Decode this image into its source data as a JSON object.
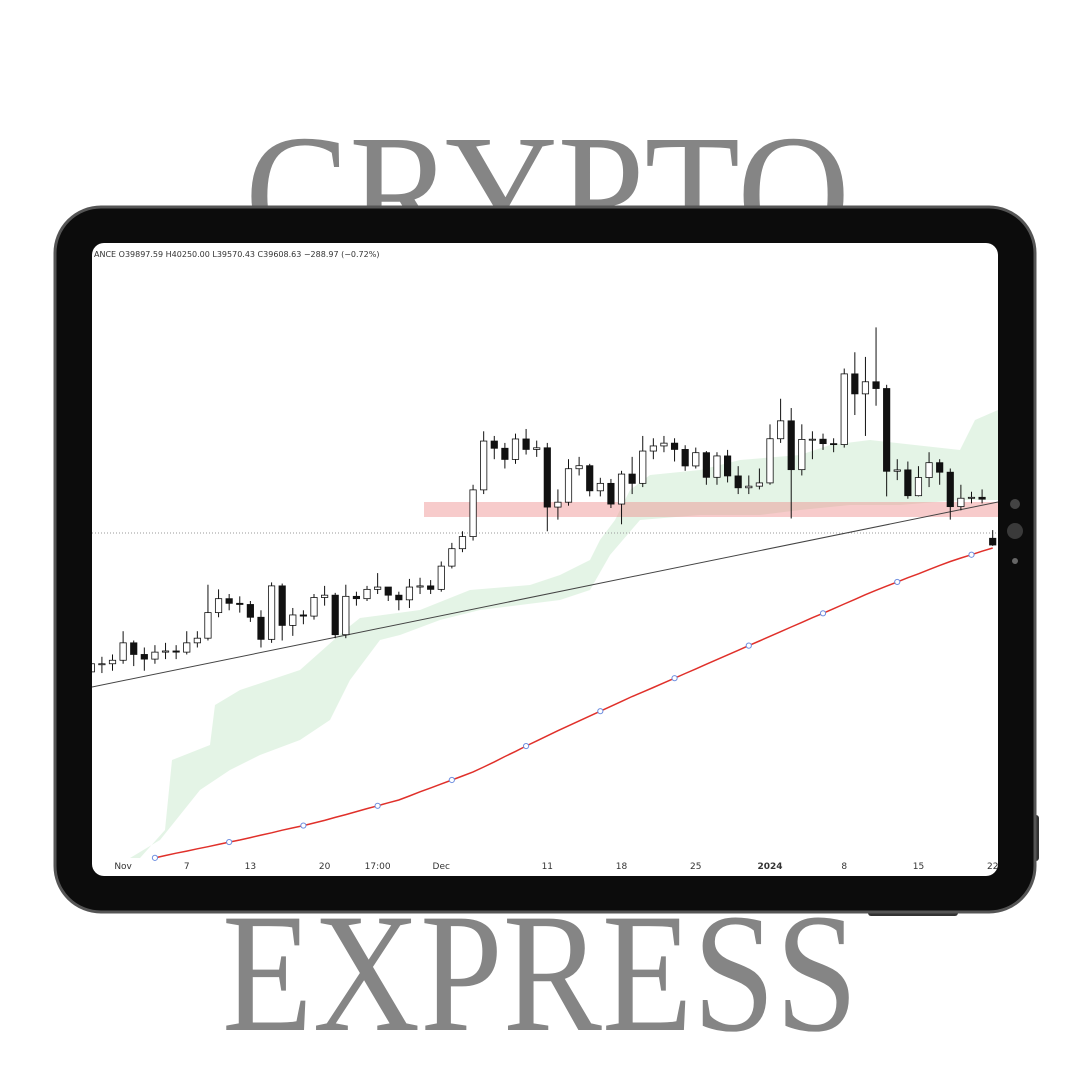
{
  "poster": {
    "title_top": "CRYPTO",
    "title_bottom": "EXPRESS"
  },
  "chart_data": {
    "type": "candlestick",
    "header": "ANCE O39897.59 H40250.00 L39570.43 C39608.63 −288.97 (−0.72%)",
    "categories": [
      null,
      null,
      null,
      "Nov",
      null,
      null,
      null,
      null,
      null,
      "7",
      null,
      null,
      null,
      null,
      null,
      "13",
      null,
      null,
      null,
      null,
      null,
      null,
      "20",
      null,
      null,
      null,
      null,
      "17:00",
      null,
      null,
      null,
      null,
      null,
      "Dec",
      null,
      null,
      null,
      null,
      null,
      null,
      null,
      null,
      null,
      "11",
      null,
      null,
      null,
      null,
      null,
      null,
      "18",
      null,
      null,
      null,
      null,
      null,
      null,
      "25",
      null,
      null,
      null,
      null,
      null,
      null,
      "2024",
      null,
      null,
      null,
      null,
      null,
      null,
      "8",
      null,
      null,
      null,
      null,
      null,
      null,
      "15",
      null,
      null,
      null,
      null,
      null,
      null,
      "22"
    ],
    "open": [
      34150,
      34500,
      34500,
      34650,
      35400,
      34900,
      34700,
      35000,
      35050,
      35000,
      35400,
      35600,
      36700,
      37300,
      37100,
      37050,
      36500,
      35550,
      37850,
      36150,
      36600,
      36550,
      37350,
      37450,
      35750,
      37400,
      37300,
      37700,
      37800,
      37450,
      37250,
      37800,
      37850,
      37700,
      38700,
      39450,
      39970,
      41980,
      44080,
      43770,
      43290,
      44170,
      43720,
      43790,
      41240,
      41450,
      42890,
      43020,
      41940,
      42260,
      41370,
      42660,
      42260,
      43650,
      43870,
      43990,
      43720,
      43010,
      43580,
      42520,
      43440,
      42580,
      42070,
      42140,
      42280,
      44180,
      44950,
      42850,
      44150,
      44160,
      43970,
      43930,
      46970,
      46110,
      46630,
      46340,
      42780,
      42840,
      41730,
      42510,
      43150,
      42740,
      41260,
      41620,
      41660,
      39897.59
    ],
    "high": [
      34800,
      34800,
      34900,
      35900,
      35500,
      35200,
      35300,
      35400,
      35300,
      35900,
      35900,
      37900,
      37700,
      37500,
      37400,
      37200,
      36800,
      38000,
      37950,
      36900,
      36800,
      37500,
      37850,
      37550,
      37900,
      37600,
      37850,
      38400,
      37800,
      37600,
      38150,
      38200,
      38100,
      38900,
      39700,
      40200,
      42200,
      44500,
      44300,
      44000,
      44400,
      44600,
      44100,
      44000,
      42000,
      43300,
      43400,
      43100,
      42500,
      42450,
      42800,
      43400,
      44300,
      44200,
      44300,
      44200,
      43900,
      43800,
      43650,
      43600,
      43700,
      43000,
      42600,
      42900,
      44800,
      45900,
      45500,
      44800,
      44500,
      44400,
      44200,
      47200,
      47900,
      47700,
      48970,
      46500,
      43300,
      43200,
      43000,
      43600,
      43300,
      42900,
      42200,
      41900,
      42000,
      40250.0
    ],
    "low": [
      33900,
      34100,
      34200,
      34500,
      34400,
      34200,
      34500,
      34700,
      34700,
      34900,
      35200,
      35500,
      36500,
      36800,
      36700,
      36300,
      35200,
      35400,
      35500,
      35700,
      36200,
      36400,
      37000,
      35600,
      35600,
      37000,
      37200,
      37500,
      37200,
      36800,
      36900,
      37500,
      37500,
      37600,
      38600,
      39300,
      39800,
      41800,
      43300,
      42900,
      43100,
      43500,
      43400,
      40200,
      40700,
      41300,
      42600,
      41700,
      41700,
      41200,
      40500,
      41800,
      42100,
      43300,
      43600,
      43200,
      42800,
      42900,
      42200,
      42200,
      42300,
      41800,
      41800,
      42000,
      42200,
      44000,
      40750,
      42600,
      43300,
      43700,
      43600,
      43800,
      45200,
      44300,
      45600,
      41700,
      42400,
      41600,
      41700,
      42100,
      42200,
      40700,
      41100,
      41400,
      41400,
      39570.43
    ],
    "close": [
      34500,
      34500,
      34650,
      35400,
      34900,
      34700,
      35000,
      35050,
      35000,
      35400,
      35600,
      36700,
      37300,
      37100,
      37050,
      36500,
      35550,
      37850,
      36150,
      36600,
      36550,
      37350,
      37450,
      35750,
      37400,
      37300,
      37700,
      37800,
      37450,
      37250,
      37800,
      37850,
      37700,
      38700,
      39450,
      39970,
      41980,
      44080,
      43770,
      43290,
      44170,
      43720,
      43790,
      41240,
      41450,
      42890,
      43020,
      41940,
      42260,
      41370,
      42660,
      42260,
      43650,
      43870,
      43990,
      43720,
      43010,
      43580,
      42520,
      43440,
      42580,
      42070,
      42140,
      42280,
      44180,
      44950,
      42850,
      44150,
      44160,
      43970,
      43930,
      46970,
      46110,
      46630,
      46340,
      42780,
      42840,
      41730,
      42510,
      43150,
      42740,
      41260,
      41620,
      41660,
      41580,
      39608.63
    ],
    "ma": {
      "color": "#e0302a",
      "values": [
        null,
        null,
        null,
        null,
        null,
        null,
        26150,
        26250,
        26350,
        26440,
        26540,
        26630,
        26730,
        26830,
        26920,
        27020,
        27130,
        27230,
        27340,
        27440,
        27540,
        27650,
        27760,
        27890,
        28010,
        28140,
        28270,
        28390,
        28520,
        28640,
        28810,
        28990,
        29160,
        29330,
        29500,
        29670,
        29850,
        30060,
        30280,
        30510,
        30730,
        30960,
        31180,
        31400,
        31620,
        31830,
        32040,
        32250,
        32460,
        32670,
        32880,
        33090,
        33280,
        33480,
        33680,
        33880,
        34080,
        34280,
        34480,
        34680,
        34880,
        35080,
        35280,
        35480,
        35680,
        35880,
        36080,
        36280,
        36480,
        36670,
        36870,
        37070,
        37270,
        37470,
        37660,
        37840,
        38020,
        38200,
        38370,
        38550,
        38730,
        38900,
        39050,
        39190,
        39340,
        39480
      ]
    },
    "up_color": "#ffffff",
    "down_color": "#111111",
    "ylim": [
      25800,
      52600
    ]
  }
}
